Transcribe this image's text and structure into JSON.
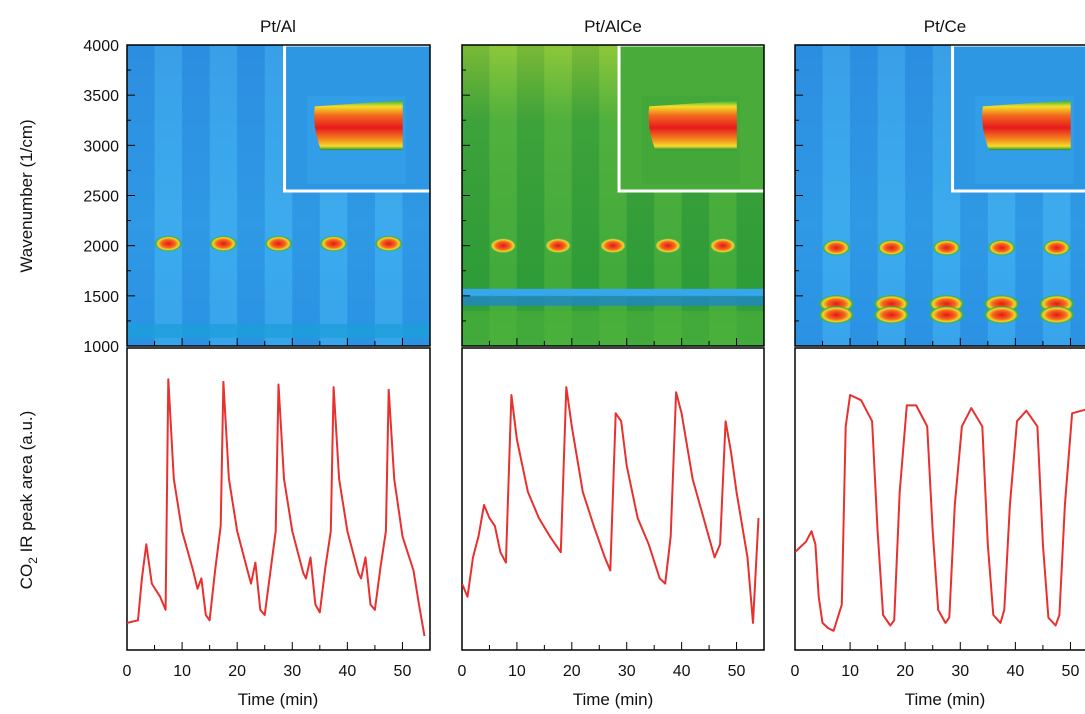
{
  "figure": {
    "y_label_top": "Wavenumber (1/cm)",
    "y_label_bottom_prefix": "CO",
    "y_label_bottom_sub": "2",
    "y_label_bottom_suffix": " IR peak area (a.u.)"
  },
  "colors": {
    "trace": "#e8312e",
    "background": "#2f9fe3",
    "band": "#45b0f0",
    "hot": "#f2231c",
    "green_bg": "#3cae3c"
  },
  "chart_data": [
    {
      "type": "heatmap",
      "title": "Pt/Al",
      "xlabel": "",
      "ylabel": "Wavenumber (1/cm)",
      "xlim": [
        0,
        55
      ],
      "ylim": [
        1000,
        4000
      ],
      "y_ticks": [
        "1000",
        "1500",
        "2000",
        "2500",
        "3000",
        "3500",
        "4000"
      ],
      "peaks": [
        {
          "t": 7.5,
          "wavenumber": 2020
        },
        {
          "t": 17.5,
          "wavenumber": 2020
        },
        {
          "t": 27.5,
          "wavenumber": 2020
        },
        {
          "t": 37.5,
          "wavenumber": 2020
        },
        {
          "t": 47.5,
          "wavenumber": 2020
        }
      ],
      "inset": true,
      "background": "blue"
    },
    {
      "type": "heatmap",
      "title": "Pt/AlCe",
      "xlabel": "",
      "ylabel": "",
      "xlim": [
        0,
        55
      ],
      "ylim": [
        1000,
        4000
      ],
      "peaks": [
        {
          "t": 7.5,
          "wavenumber": 2000
        },
        {
          "t": 17.5,
          "wavenumber": 2000
        },
        {
          "t": 27.5,
          "wavenumber": 2000
        },
        {
          "t": 37.5,
          "wavenumber": 2000
        },
        {
          "t": 47.5,
          "wavenumber": 2000
        }
      ],
      "inset": true,
      "background": "green"
    },
    {
      "type": "heatmap",
      "title": "Pt/Ce",
      "xlabel": "",
      "ylabel": "",
      "xlim": [
        0,
        55
      ],
      "ylim": [
        1000,
        4000
      ],
      "peaks": [
        {
          "t": 7.5,
          "wavenumber": 1980
        },
        {
          "t": 17.5,
          "wavenumber": 1980
        },
        {
          "t": 27.5,
          "wavenumber": 1980
        },
        {
          "t": 37.5,
          "wavenumber": 1980
        },
        {
          "t": 47.5,
          "wavenumber": 1980
        }
      ],
      "secondary_bands": [
        1420,
        1310
      ],
      "inset": true,
      "background": "blue"
    },
    {
      "type": "line",
      "title": "",
      "xlabel": "Time (min)",
      "ylabel": "CO2 IR peak area (a.u.)",
      "xlim": [
        0,
        55
      ],
      "ylim": [
        0,
        1
      ],
      "x_ticks": [
        "0",
        "10",
        "20",
        "30",
        "40",
        "50"
      ],
      "series": [
        {
          "x": [
            0,
            2,
            2.7,
            3.5,
            4.5,
            6,
            7,
            7.5,
            8.5,
            10,
            12,
            12.8,
            13.5,
            14.3,
            15,
            16,
            17,
            17.5,
            18.5,
            20,
            22,
            22.5,
            23.3,
            24.2,
            25,
            26,
            27,
            27.5,
            28.5,
            30,
            32,
            32.5,
            33.3,
            34.2,
            35,
            36,
            37,
            37.5,
            38.5,
            40,
            42,
            42.5,
            43.3,
            44.2,
            45,
            46,
            47,
            47.5,
            48.5,
            50,
            52,
            53,
            54
          ],
          "y": [
            0.05,
            0.06,
            0.22,
            0.35,
            0.2,
            0.15,
            0.1,
            0.98,
            0.6,
            0.4,
            0.25,
            0.18,
            0.22,
            0.08,
            0.06,
            0.25,
            0.42,
            0.97,
            0.6,
            0.4,
            0.24,
            0.2,
            0.28,
            0.1,
            0.08,
            0.24,
            0.4,
            0.96,
            0.6,
            0.4,
            0.24,
            0.22,
            0.3,
            0.12,
            0.09,
            0.26,
            0.4,
            0.95,
            0.6,
            0.4,
            0.24,
            0.22,
            0.3,
            0.12,
            0.1,
            0.26,
            0.4,
            0.94,
            0.6,
            0.38,
            0.25,
            0.12,
            0.0
          ]
        }
      ]
    },
    {
      "type": "line",
      "title": "",
      "xlabel": "Time (min)",
      "ylabel": "",
      "xlim": [
        0,
        55
      ],
      "ylim": [
        0,
        1
      ],
      "x_ticks": [
        "0",
        "10",
        "20",
        "30",
        "40",
        "50"
      ],
      "series": [
        {
          "x": [
            0,
            1,
            2,
            3,
            4,
            5,
            6,
            7,
            8,
            9,
            10,
            12,
            14,
            16,
            17,
            18,
            19,
            20,
            22,
            24,
            26,
            27,
            28,
            29,
            30,
            32,
            34,
            36,
            37,
            38,
            39,
            40,
            42,
            44,
            46,
            47,
            48,
            49,
            50,
            52,
            53,
            54
          ],
          "y": [
            0.2,
            0.15,
            0.3,
            0.38,
            0.5,
            0.45,
            0.42,
            0.32,
            0.28,
            0.92,
            0.75,
            0.55,
            0.45,
            0.38,
            0.35,
            0.32,
            0.95,
            0.8,
            0.55,
            0.42,
            0.3,
            0.25,
            0.85,
            0.82,
            0.65,
            0.45,
            0.35,
            0.22,
            0.2,
            0.38,
            0.93,
            0.85,
            0.6,
            0.45,
            0.3,
            0.35,
            0.82,
            0.7,
            0.55,
            0.3,
            0.05,
            0.45
          ]
        }
      ]
    },
    {
      "type": "line",
      "title": "",
      "xlabel": "Time (min)",
      "ylabel": "",
      "xlim": [
        0,
        55
      ],
      "ylim": [
        0,
        1
      ],
      "x_ticks": [
        "0",
        "10",
        "20",
        "30",
        "40",
        "50"
      ],
      "series": [
        {
          "x": [
            0,
            1,
            2,
            3,
            3.7,
            4.3,
            5,
            6,
            7,
            8.5,
            9.2,
            10,
            12,
            14,
            15,
            16,
            17.3,
            18,
            19,
            20.3,
            22,
            24,
            25,
            26,
            27.3,
            28,
            29,
            30.3,
            32,
            34,
            35,
            36,
            37.3,
            38,
            39,
            40.3,
            42,
            44,
            45,
            46,
            47.3,
            48,
            49,
            50.3,
            52,
            54
          ],
          "y": [
            0.32,
            0.34,
            0.36,
            0.4,
            0.35,
            0.15,
            0.05,
            0.03,
            0.02,
            0.12,
            0.8,
            0.92,
            0.9,
            0.82,
            0.4,
            0.08,
            0.04,
            0.06,
            0.55,
            0.88,
            0.88,
            0.8,
            0.4,
            0.1,
            0.05,
            0.07,
            0.5,
            0.8,
            0.87,
            0.8,
            0.35,
            0.08,
            0.05,
            0.1,
            0.5,
            0.82,
            0.86,
            0.8,
            0.35,
            0.07,
            0.04,
            0.08,
            0.5,
            0.85,
            0.86,
            0.87
          ]
        }
      ]
    }
  ]
}
